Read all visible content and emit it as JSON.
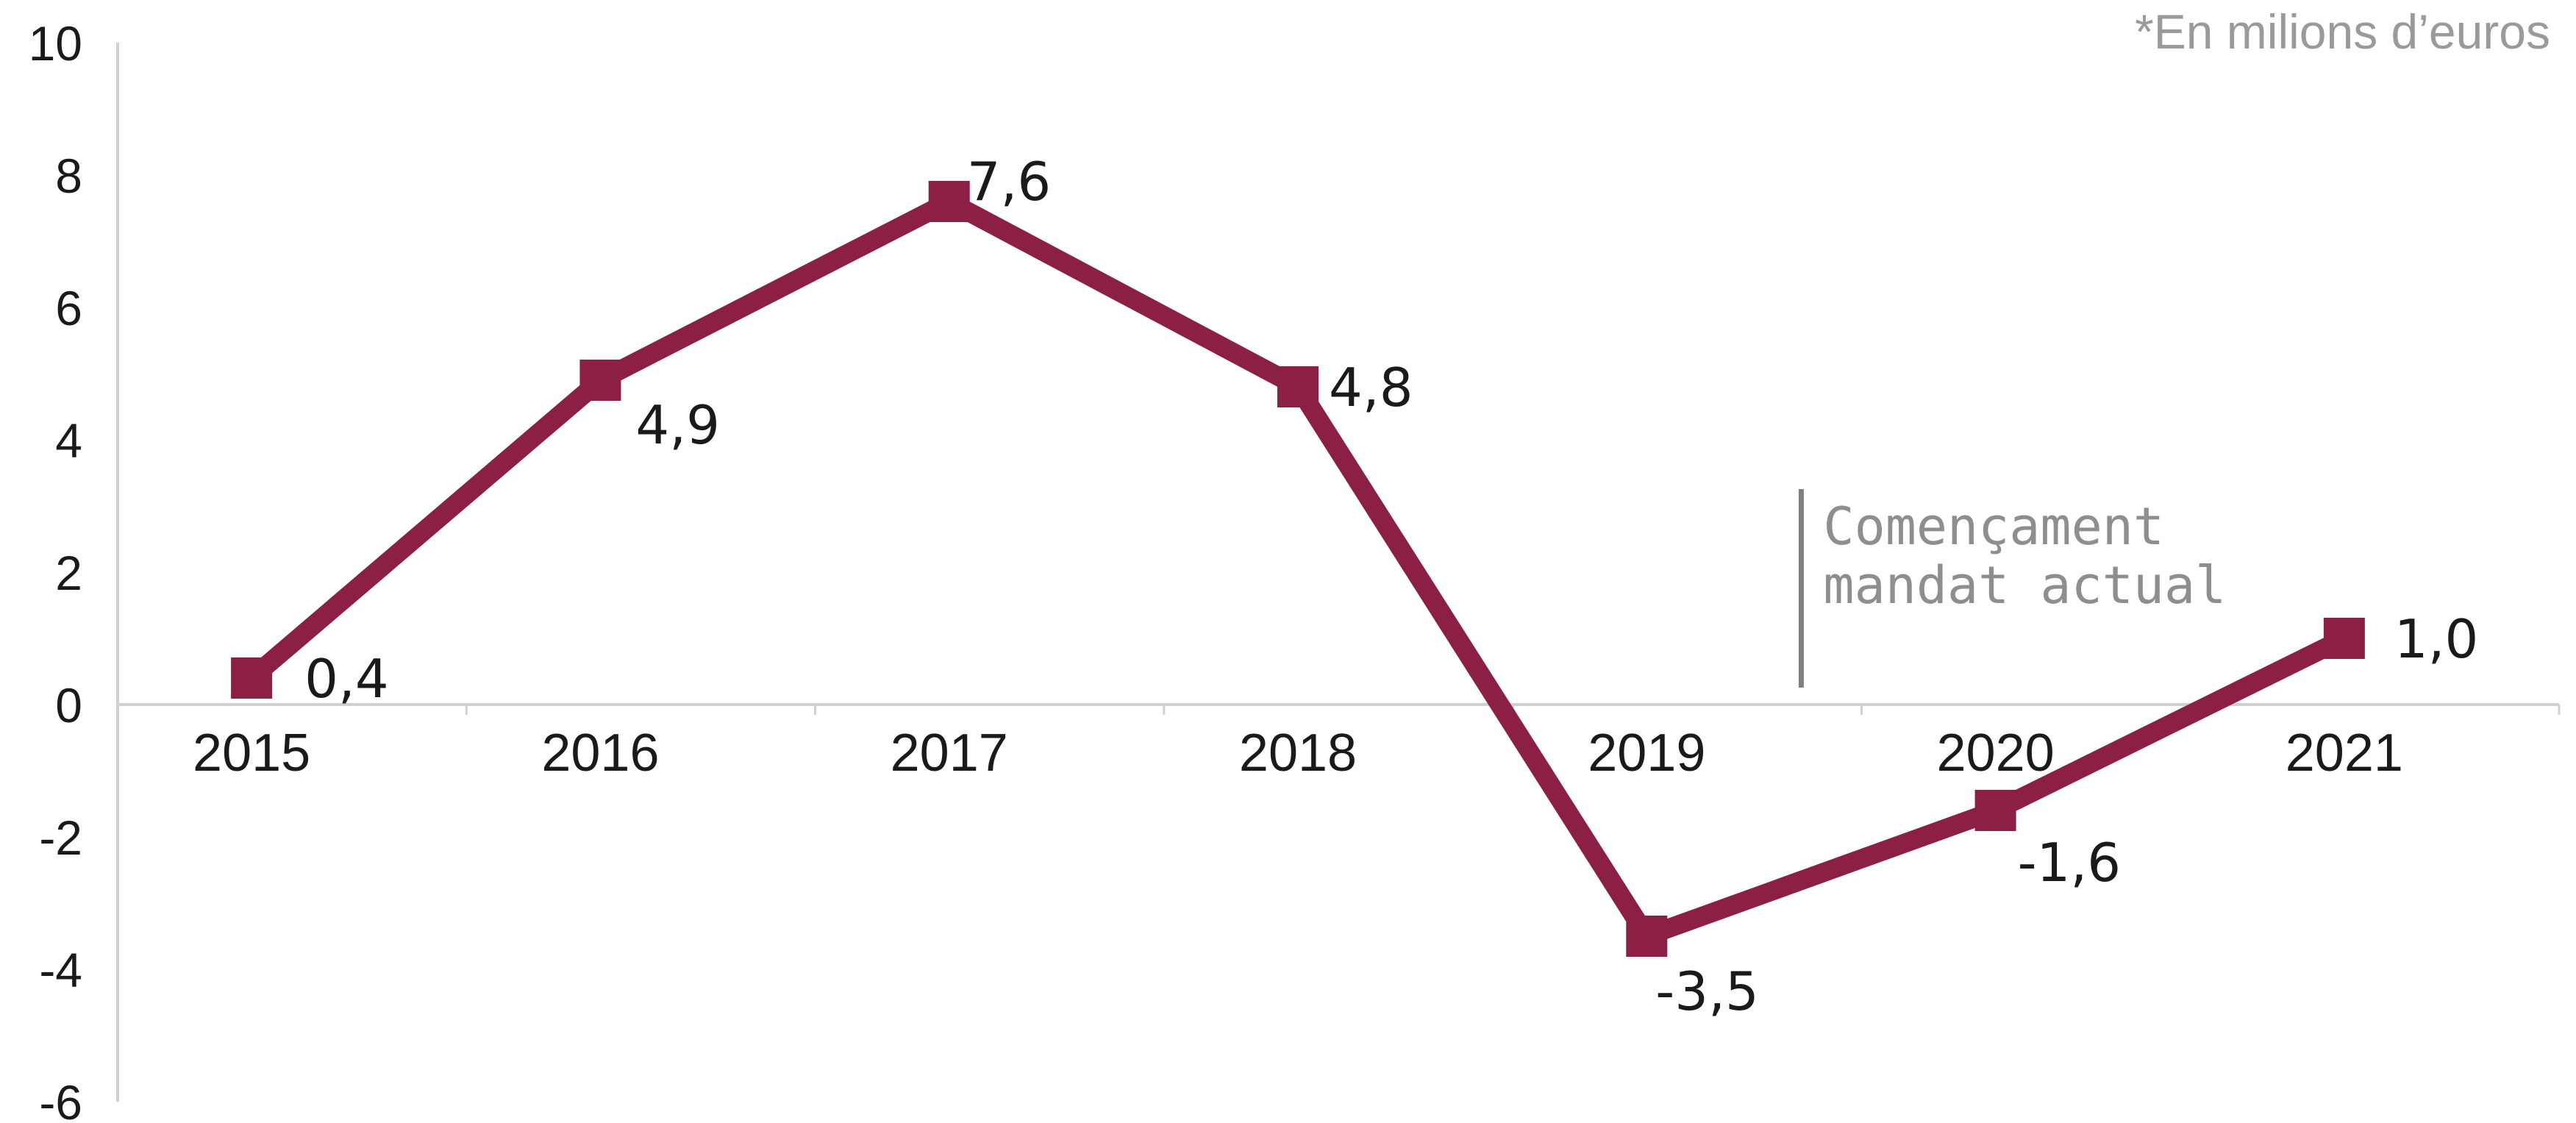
{
  "chart_data": {
    "type": "line",
    "unit_note": "*En milions d’euros",
    "categories": [
      "2015",
      "2016",
      "2017",
      "2018",
      "2019",
      "2020",
      "2021"
    ],
    "series": [
      {
        "values": [
          0.4,
          4.9,
          7.6,
          4.8,
          -3.5,
          -1.6,
          1.0
        ],
        "data_labels": [
          "0,4",
          "4,9",
          "7,6",
          "4,8",
          "-3,5",
          "-1,6",
          "1,0"
        ]
      }
    ],
    "ylim": [
      -6,
      10
    ],
    "y_ticks": [
      "10",
      "8",
      "6",
      "4",
      "2",
      "0",
      "-2",
      "-4",
      "-6"
    ],
    "grid": false,
    "legend": "none",
    "annotation": {
      "lines": [
        "Començament",
        "mandat actual"
      ],
      "between": [
        "2019",
        "2020"
      ]
    },
    "colors": {
      "series": "#8b1f45",
      "axis": "#d0d0d0",
      "annotation_line": "#7f7f7f"
    }
  }
}
